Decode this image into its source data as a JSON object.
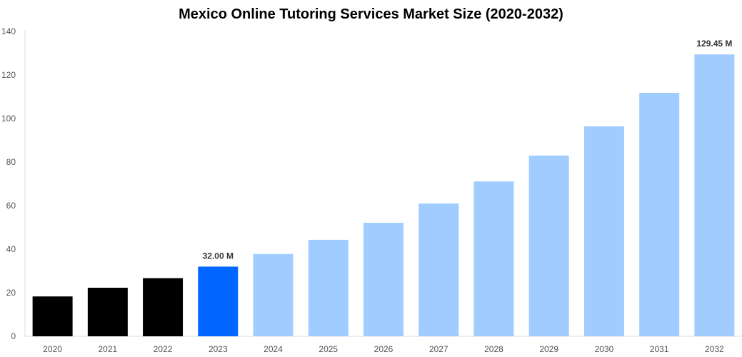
{
  "chart_data": {
    "type": "bar",
    "title": "Mexico Online Tutoring Services Market Size (2020-2032)",
    "xlabel": "",
    "ylabel": "",
    "categories": [
      "2020",
      "2021",
      "2022",
      "2023",
      "2024",
      "2025",
      "2026",
      "2027",
      "2028",
      "2029",
      "2030",
      "2031",
      "2032"
    ],
    "values": [
      18.3,
      22.3,
      26.7,
      32.0,
      37.8,
      44.3,
      52.1,
      61.0,
      71.1,
      83.0,
      96.4,
      111.8,
      129.45
    ],
    "bar_colors": [
      "#000000",
      "#000000",
      "#000000",
      "#0066ff",
      "#a0ccff",
      "#a0ccff",
      "#a0ccff",
      "#a0ccff",
      "#a0ccff",
      "#a0ccff",
      "#a0ccff",
      "#a0ccff",
      "#a0ccff"
    ],
    "data_labels": {
      "3": "32.00 M",
      "12": "129.45 M"
    },
    "ylim": [
      0,
      140
    ],
    "yticks": [
      0,
      20,
      40,
      60,
      80,
      100,
      120,
      140
    ],
    "grid": false,
    "legend": "none"
  }
}
